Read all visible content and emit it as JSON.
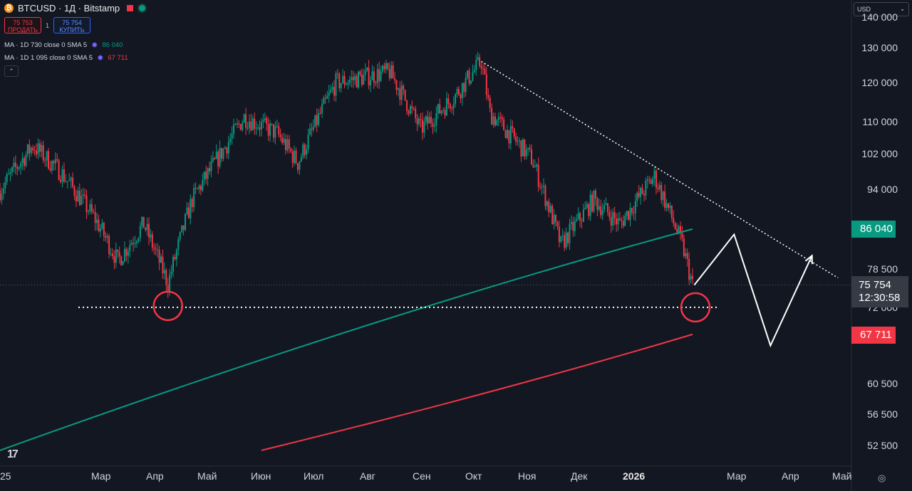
{
  "header": {
    "coin_glyph": "₿",
    "title": "BTCUSD · 1Д · Bitstamp",
    "sell_price": "75 753",
    "sell_label": "ПРОДАТЬ",
    "spread": "1",
    "buy_price": "75 754",
    "buy_label": "КУПИТЬ"
  },
  "indicators": [
    {
      "label": "MA · 1D 730 close 0 SMA 5",
      "value": "86 040",
      "color": "#089981"
    },
    {
      "label": "MA · 1D 1 095 close 0 SMA 5",
      "value": "67 711",
      "color": "#f23645"
    }
  ],
  "collapse_glyph": "⌃",
  "currency": "USD",
  "currency_arrow": "⌄",
  "y_axis": [
    "140 000",
    "130 000",
    "120 000",
    "110 000",
    "102 000",
    "94 000",
    "78 500",
    "72 000",
    "60 500",
    "56 500",
    "52 500"
  ],
  "x_axis": [
    "25",
    "Мар",
    "Апр",
    "Май",
    "Июн",
    "Июл",
    "Авг",
    "Сен",
    "Окт",
    "Ноя",
    "Дек",
    "2026",
    "Мар",
    "Апр",
    "Май"
  ],
  "badges": {
    "ma730": "86 040",
    "ma1095": "67 711"
  },
  "last_price": {
    "value": "75 754",
    "countdown": "12:30:58"
  },
  "branding": "17",
  "settings_glyph": "◎",
  "colors": {
    "background": "#131722",
    "up": "#089981",
    "down": "#f23645",
    "ma730": "#089981",
    "ma1095": "#f23645"
  },
  "chart_data": {
    "type": "candlestick",
    "symbol": "BTCUSD",
    "interval": "1Д",
    "close_path": [
      [
        "2025-01-01",
        94000
      ],
      [
        "2025-01-20",
        104000
      ],
      [
        "2025-02-05",
        98000
      ],
      [
        "2025-02-25",
        88000
      ],
      [
        "2025-03-10",
        80000
      ],
      [
        "2025-03-25",
        87000
      ],
      [
        "2025-04-08",
        76000
      ],
      [
        "2025-04-22",
        92000
      ],
      [
        "2025-05-10",
        103000
      ],
      [
        "2025-05-22",
        111000
      ],
      [
        "2025-06-10",
        107000
      ],
      [
        "2025-06-22",
        100000
      ],
      [
        "2025-07-14",
        120000
      ],
      [
        "2025-08-14",
        123000
      ],
      [
        "2025-09-01",
        108000
      ],
      [
        "2025-09-20",
        116000
      ],
      [
        "2025-10-06",
        126000
      ],
      [
        "2025-10-11",
        112000
      ],
      [
        "2025-11-04",
        101000
      ],
      [
        "2025-11-21",
        83000
      ],
      [
        "2025-12-10",
        92000
      ],
      [
        "2025-12-25",
        87000
      ],
      [
        "2026-01-14",
        97000
      ],
      [
        "2026-01-30",
        83000
      ],
      [
        "2026-02-05",
        75754
      ]
    ],
    "moving_averages": [
      {
        "name": "MA 730",
        "start": [
          "2025-01-01",
          52000
        ],
        "end": [
          "2026-02-05",
          86040
        ]
      },
      {
        "name": "MA 1095",
        "start": [
          "2025-06-01",
          52000
        ],
        "end": [
          "2026-02-05",
          67711
        ]
      }
    ],
    "support_level": 72000,
    "trendline": {
      "from": [
        "2025-10-06",
        126000
      ],
      "to": [
        "2026-04-30",
        77000
      ]
    },
    "projection": [
      [
        "2026-02-06",
        75754
      ],
      [
        "2026-03-01",
        85000
      ],
      [
        "2026-03-22",
        66000
      ],
      [
        "2026-04-15",
        81000
      ]
    ],
    "y_scale": "log",
    "grid": false
  }
}
